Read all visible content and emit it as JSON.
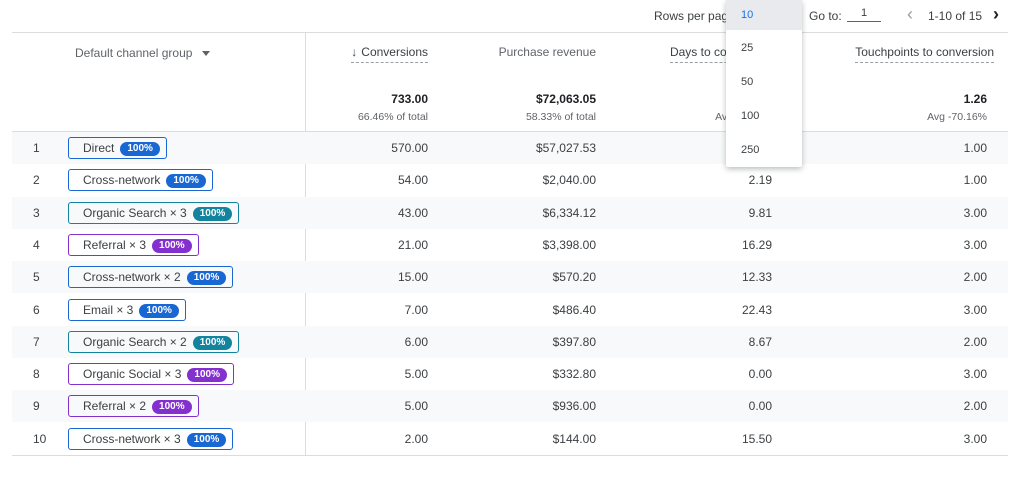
{
  "pager": {
    "rows_per_page_label": "Rows per page:",
    "goto_label": "Go to:",
    "goto_value": "1",
    "range": "1-10 of 15",
    "prev_icon": "chevron-left-icon",
    "next_icon": "chevron-right-icon"
  },
  "rows_dropdown": {
    "options": [
      "10",
      "25",
      "50",
      "100",
      "250"
    ],
    "selected": "10"
  },
  "header": {
    "dimension": "Default channel group",
    "columns": [
      {
        "label": "Conversions",
        "total": "733.00",
        "sub": "66.46% of total"
      },
      {
        "label": "Purchase revenue",
        "total": "$72,063.05",
        "sub": "58.33% of total"
      },
      {
        "label": "Days to conversion",
        "total": "",
        "sub": "Avg"
      },
      {
        "label": "Touchpoints to conversion",
        "total": "1.26",
        "sub": "Avg -70.16%"
      }
    ]
  },
  "colors": {
    "blue": "#1967d2",
    "teal": "#12849e",
    "purple": "#8430ce"
  },
  "rows": [
    {
      "idx": "1",
      "channel": "Direct",
      "pct": "100%",
      "color": "blue",
      "conv": "570.00",
      "rev": "$57,027.53",
      "days": "",
      "touch": "1.00"
    },
    {
      "idx": "2",
      "channel": "Cross-network",
      "pct": "100%",
      "color": "blue",
      "conv": "54.00",
      "rev": "$2,040.00",
      "days": "2.19",
      "touch": "1.00"
    },
    {
      "idx": "3",
      "channel": "Organic Search × 3",
      "pct": "100%",
      "color": "teal",
      "conv": "43.00",
      "rev": "$6,334.12",
      "days": "9.81",
      "touch": "3.00"
    },
    {
      "idx": "4",
      "channel": "Referral × 3",
      "pct": "100%",
      "color": "purple",
      "conv": "21.00",
      "rev": "$3,398.00",
      "days": "16.29",
      "touch": "3.00"
    },
    {
      "idx": "5",
      "channel": "Cross-network × 2",
      "pct": "100%",
      "color": "blue",
      "conv": "15.00",
      "rev": "$570.20",
      "days": "12.33",
      "touch": "2.00"
    },
    {
      "idx": "6",
      "channel": "Email × 3",
      "pct": "100%",
      "color": "blue",
      "conv": "7.00",
      "rev": "$486.40",
      "days": "22.43",
      "touch": "3.00"
    },
    {
      "idx": "7",
      "channel": "Organic Search × 2",
      "pct": "100%",
      "color": "teal",
      "conv": "6.00",
      "rev": "$397.80",
      "days": "8.67",
      "touch": "2.00"
    },
    {
      "idx": "8",
      "channel": "Organic Social × 3",
      "pct": "100%",
      "color": "purple",
      "conv": "5.00",
      "rev": "$332.80",
      "days": "0.00",
      "touch": "3.00"
    },
    {
      "idx": "9",
      "channel": "Referral × 2",
      "pct": "100%",
      "color": "purple",
      "conv": "5.00",
      "rev": "$936.00",
      "days": "0.00",
      "touch": "2.00"
    },
    {
      "idx": "10",
      "channel": "Cross-network × 3",
      "pct": "100%",
      "color": "blue",
      "conv": "2.00",
      "rev": "$144.00",
      "days": "15.50",
      "touch": "3.00"
    }
  ]
}
